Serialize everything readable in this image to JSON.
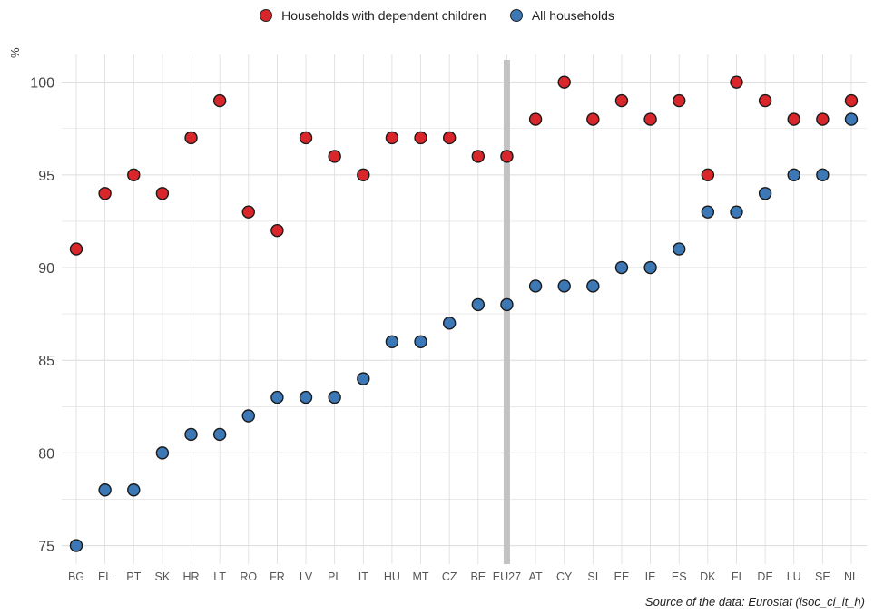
{
  "legend": {
    "series_a": "Households with dependent children",
    "series_b": "All households"
  },
  "ylabel": "%",
  "source": "Source of the data: Eurostat (isoc_ci_it_h)",
  "colors": {
    "series_a": "#d8262b",
    "series_b": "#3b78b5",
    "highlight_bar": "#c2c2c2",
    "grid": "#dcdcdc"
  },
  "chart_data": {
    "type": "scatter",
    "categories": [
      "BG",
      "EL",
      "PT",
      "SK",
      "HR",
      "LT",
      "RO",
      "FR",
      "LV",
      "PL",
      "IT",
      "HU",
      "MT",
      "CZ",
      "BE",
      "EU27",
      "AT",
      "CY",
      "SI",
      "EE",
      "IE",
      "ES",
      "DK",
      "FI",
      "DE",
      "LU",
      "SE",
      "NL"
    ],
    "series": [
      {
        "name": "Households with dependent children",
        "values": [
          91,
          94,
          95,
          94,
          97,
          99,
          93,
          92,
          97,
          96,
          95,
          97,
          97,
          97,
          96,
          96,
          98,
          100,
          98,
          99,
          98,
          99,
          95,
          100,
          99,
          98,
          98,
          99
        ]
      },
      {
        "name": "All households",
        "values": [
          75,
          78,
          78,
          80,
          81,
          81,
          82,
          83,
          83,
          83,
          84,
          86,
          86,
          87,
          88,
          88,
          89,
          89,
          89,
          90,
          90,
          91,
          93,
          93,
          94,
          95,
          95,
          98
        ]
      }
    ],
    "highlight_category": "EU27",
    "ylim": [
      74,
      101.5
    ],
    "yticks": [
      75,
      80,
      85,
      90,
      95,
      100
    ],
    "ylabel": "%",
    "grid": true,
    "legend_position": "top"
  }
}
